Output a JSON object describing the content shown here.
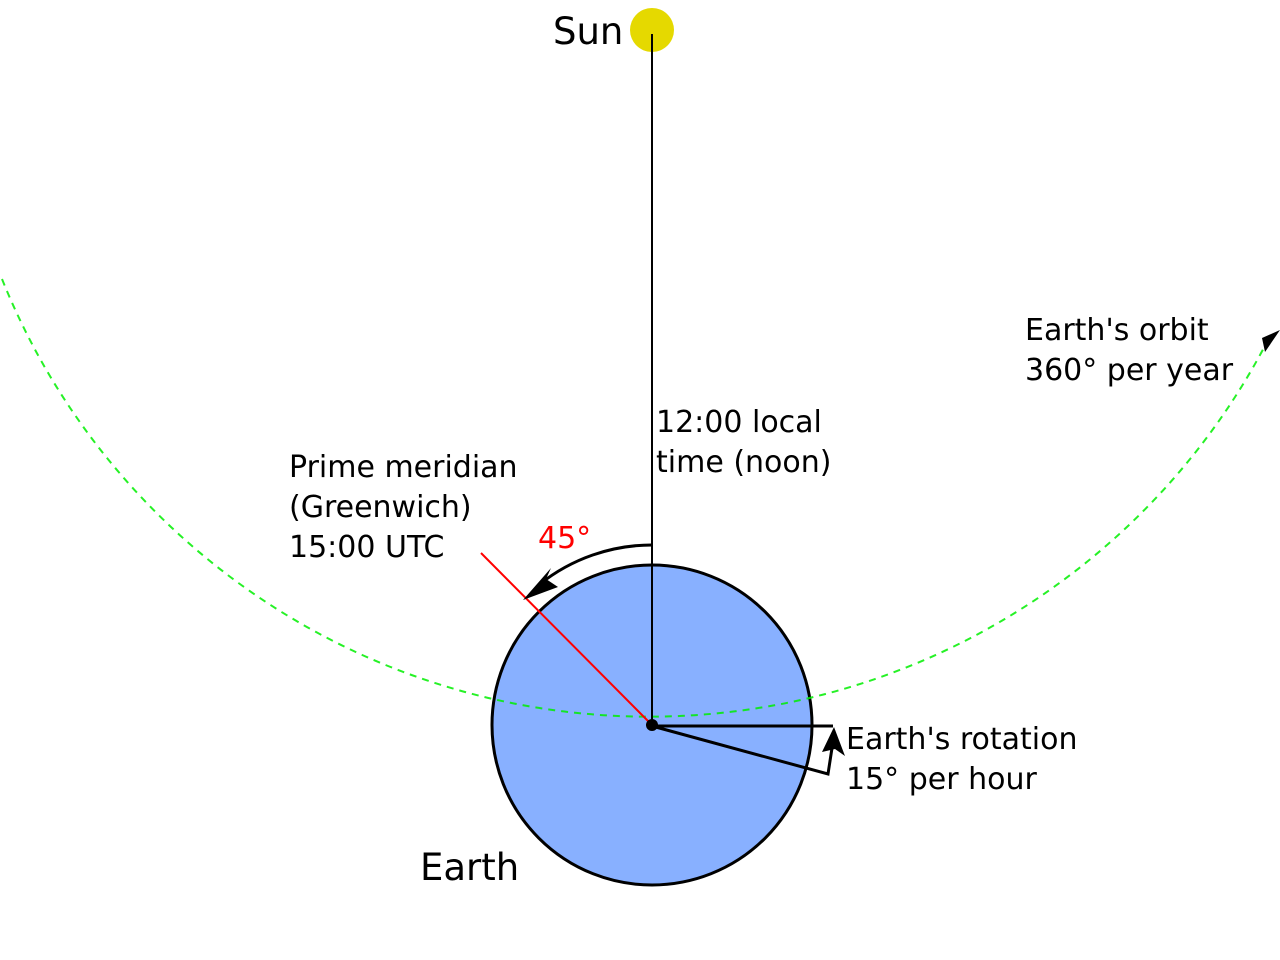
{
  "labels": {
    "sun": "Sun",
    "earth": "Earth",
    "orbit_line1": "Earth's orbit",
    "orbit_line2": "360° per year",
    "noon_line1": "12:00 local",
    "noon_line2": "time (noon)",
    "prime_line1": "Prime meridian",
    "prime_line2": "(Greenwich)",
    "prime_line3": "15:00 UTC",
    "angle": "45°",
    "rotation_line1": "Earth's rotation",
    "rotation_line2": "15° per hour"
  },
  "colors": {
    "sun": "#e5d900",
    "earth": "#88b0ff",
    "orbit": "#00ee00",
    "prime_meridian": "#ff0000",
    "angle_label": "#ff0000"
  }
}
